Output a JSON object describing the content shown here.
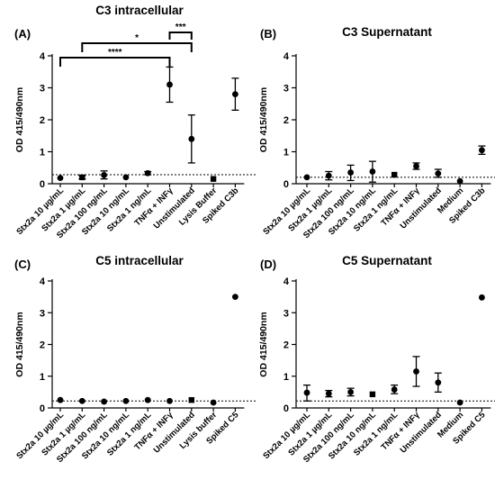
{
  "chart_data": [
    {
      "panel": "(A)",
      "title": "C3 intracellular",
      "type": "scatter",
      "ylabel": "OD 415/490nm",
      "ylim": [
        0,
        4
      ],
      "yticks": [
        0,
        1,
        2,
        3,
        4
      ],
      "threshold": 0.28,
      "categories": [
        "Stx2a 10 µg/mL",
        "Stx2a 1 µg/mL",
        "Stx2a 100 ng/mL",
        "Stx2a 10 ng/mL",
        "Stx2a 1 ng/mL",
        "TNFα + INFγ",
        "Unstimulated",
        "Lysis Buffer",
        "Spiked C3b"
      ],
      "points": [
        {
          "mean": 0.18,
          "lo": 0.18,
          "hi": 0.18,
          "marker": "circle"
        },
        {
          "mean": 0.2,
          "lo": 0.15,
          "hi": 0.25,
          "marker": "square"
        },
        {
          "mean": 0.27,
          "lo": 0.15,
          "hi": 0.4,
          "marker": "circle"
        },
        {
          "mean": 0.2,
          "lo": 0.2,
          "hi": 0.2,
          "marker": "circle"
        },
        {
          "mean": 0.33,
          "lo": 0.28,
          "hi": 0.38,
          "marker": "circle"
        },
        {
          "mean": 3.1,
          "lo": 2.55,
          "hi": 3.65,
          "marker": "circle"
        },
        {
          "mean": 1.4,
          "lo": 0.65,
          "hi": 2.15,
          "marker": "circle"
        },
        {
          "mean": 0.15,
          "lo": 0.15,
          "hi": 0.15,
          "marker": "square"
        },
        {
          "mean": 2.8,
          "lo": 2.3,
          "hi": 3.3,
          "marker": "circle"
        }
      ],
      "significance": [
        {
          "label": "****",
          "from": 0,
          "to": 5
        },
        {
          "label": "*",
          "from": 1,
          "to": 6
        },
        {
          "label": "***",
          "from": 5,
          "to": 6
        }
      ]
    },
    {
      "panel": "(B)",
      "title": "C3 Supernatant",
      "type": "scatter",
      "ylabel": "OD 415/490nm",
      "ylim": [
        0,
        4
      ],
      "yticks": [
        0,
        1,
        2,
        3,
        4
      ],
      "threshold": 0.2,
      "categories": [
        "Stx2a 10 µg/mL",
        "Stx2a 1 µg/mL",
        "Stx2a 100 ng/mL",
        "Stx2a 10 ng/mL",
        "Stx2a 1 ng/mL",
        "TNFα + INFγ",
        "Unstimulated",
        "Medium",
        "Spiked C3b"
      ],
      "points": [
        {
          "mean": 0.2,
          "lo": 0.2,
          "hi": 0.2,
          "marker": "circle"
        },
        {
          "mean": 0.25,
          "lo": 0.12,
          "hi": 0.38,
          "marker": "circle"
        },
        {
          "mean": 0.35,
          "lo": 0.1,
          "hi": 0.58,
          "marker": "circle"
        },
        {
          "mean": 0.38,
          "lo": 0.05,
          "hi": 0.7,
          "marker": "circle"
        },
        {
          "mean": 0.28,
          "lo": 0.28,
          "hi": 0.28,
          "marker": "square"
        },
        {
          "mean": 0.55,
          "lo": 0.45,
          "hi": 0.65,
          "marker": "circle"
        },
        {
          "mean": 0.32,
          "lo": 0.2,
          "hi": 0.45,
          "marker": "circle"
        },
        {
          "mean": 0.08,
          "lo": 0.08,
          "hi": 0.08,
          "marker": "circle"
        },
        {
          "mean": 1.05,
          "lo": 0.92,
          "hi": 1.18,
          "marker": "circle"
        }
      ]
    },
    {
      "panel": "(C)",
      "title": "C5 intracellular",
      "type": "scatter",
      "ylabel": "OD 415/490nm",
      "ylim": [
        0,
        4
      ],
      "yticks": [
        0,
        1,
        2,
        3,
        4
      ],
      "threshold": 0.22,
      "categories": [
        "Stx2a 10 µg/mL",
        "Stx2a 1 µg/mL",
        "Stx2a 100 ng/mL",
        "Stx2a 10 ng/mL",
        "Stx2a 1 ng/mL",
        "TNFα + INFγ",
        "Unstimulated",
        "Lysis buffer",
        "Spiked C5"
      ],
      "points": [
        {
          "mean": 0.25,
          "lo": 0.25,
          "hi": 0.25,
          "marker": "circle"
        },
        {
          "mean": 0.22,
          "lo": 0.22,
          "hi": 0.22,
          "marker": "circle"
        },
        {
          "mean": 0.2,
          "lo": 0.2,
          "hi": 0.2,
          "marker": "circle"
        },
        {
          "mean": 0.22,
          "lo": 0.22,
          "hi": 0.22,
          "marker": "circle"
        },
        {
          "mean": 0.25,
          "lo": 0.25,
          "hi": 0.25,
          "marker": "circle"
        },
        {
          "mean": 0.22,
          "lo": 0.22,
          "hi": 0.22,
          "marker": "circle"
        },
        {
          "mean": 0.25,
          "lo": 0.25,
          "hi": 0.25,
          "marker": "square"
        },
        {
          "mean": 0.17,
          "lo": 0.17,
          "hi": 0.17,
          "marker": "circle"
        },
        {
          "mean": 3.5,
          "lo": 3.5,
          "hi": 3.5,
          "marker": "circle"
        }
      ]
    },
    {
      "panel": "(D)",
      "title": "C5 Supernatant",
      "type": "scatter",
      "ylabel": "OD 415/490nm",
      "ylim": [
        0,
        4
      ],
      "yticks": [
        0,
        1,
        2,
        3,
        4
      ],
      "threshold": 0.22,
      "categories": [
        "Stx2a 10 µg/mL",
        "Stx2a 1 µg/mL",
        "Stx2a 100 ng/mL",
        "Stx2a 10 ng/mL",
        "Stx2a 1 ng/mL",
        "TNFα + INFγ",
        "Unstimulated",
        "Medium",
        "Spiked C5"
      ],
      "points": [
        {
          "mean": 0.48,
          "lo": 0.22,
          "hi": 0.72,
          "marker": "circle"
        },
        {
          "mean": 0.45,
          "lo": 0.35,
          "hi": 0.55,
          "marker": "circle"
        },
        {
          "mean": 0.5,
          "lo": 0.38,
          "hi": 0.62,
          "marker": "circle"
        },
        {
          "mean": 0.43,
          "lo": 0.43,
          "hi": 0.43,
          "marker": "square"
        },
        {
          "mean": 0.58,
          "lo": 0.45,
          "hi": 0.72,
          "marker": "circle"
        },
        {
          "mean": 1.15,
          "lo": 0.68,
          "hi": 1.62,
          "marker": "circle"
        },
        {
          "mean": 0.8,
          "lo": 0.5,
          "hi": 1.1,
          "marker": "circle"
        },
        {
          "mean": 0.17,
          "lo": 0.17,
          "hi": 0.17,
          "marker": "circle"
        },
        {
          "mean": 3.48,
          "lo": 3.48,
          "hi": 3.48,
          "marker": "circle"
        }
      ]
    }
  ]
}
